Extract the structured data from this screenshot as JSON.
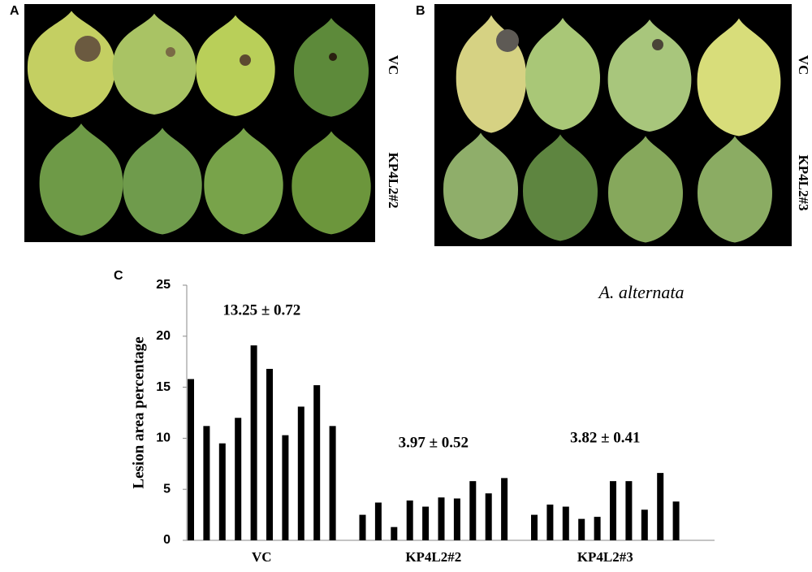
{
  "panels": [
    {
      "letter": "A",
      "rows": [
        "VC",
        "KP4L2#2"
      ]
    },
    {
      "letter": "B",
      "rows": [
        "VC",
        "KP4L2#3"
      ]
    }
  ],
  "chart_data": {
    "type": "bar",
    "panel_label": "C",
    "title": "A. alternata",
    "y_label": "Lesion area percentage",
    "groups": [
      {
        "name": "VC",
        "annotation": "13.25 ± 0.72",
        "values": [
          15.8,
          11.2,
          9.5,
          12.0,
          19.1,
          16.8,
          10.3,
          13.1,
          15.2,
          11.2
        ]
      },
      {
        "name": "KP4L2#2",
        "annotation": "3.97 ± 0.52",
        "values": [
          2.5,
          3.7,
          1.3,
          3.9,
          3.3,
          4.2,
          4.1,
          5.8,
          4.6,
          6.1
        ]
      },
      {
        "name": "KP4L2#3",
        "annotation": "3.82  ± 0.41",
        "values": [
          2.5,
          3.5,
          3.3,
          2.1,
          2.3,
          5.8,
          5.8,
          3.0,
          6.6,
          3.8
        ]
      }
    ],
    "color": "#000000",
    "ylim": [
      0,
      25
    ],
    "yticks": [
      0,
      5,
      10,
      15,
      20,
      25
    ]
  }
}
